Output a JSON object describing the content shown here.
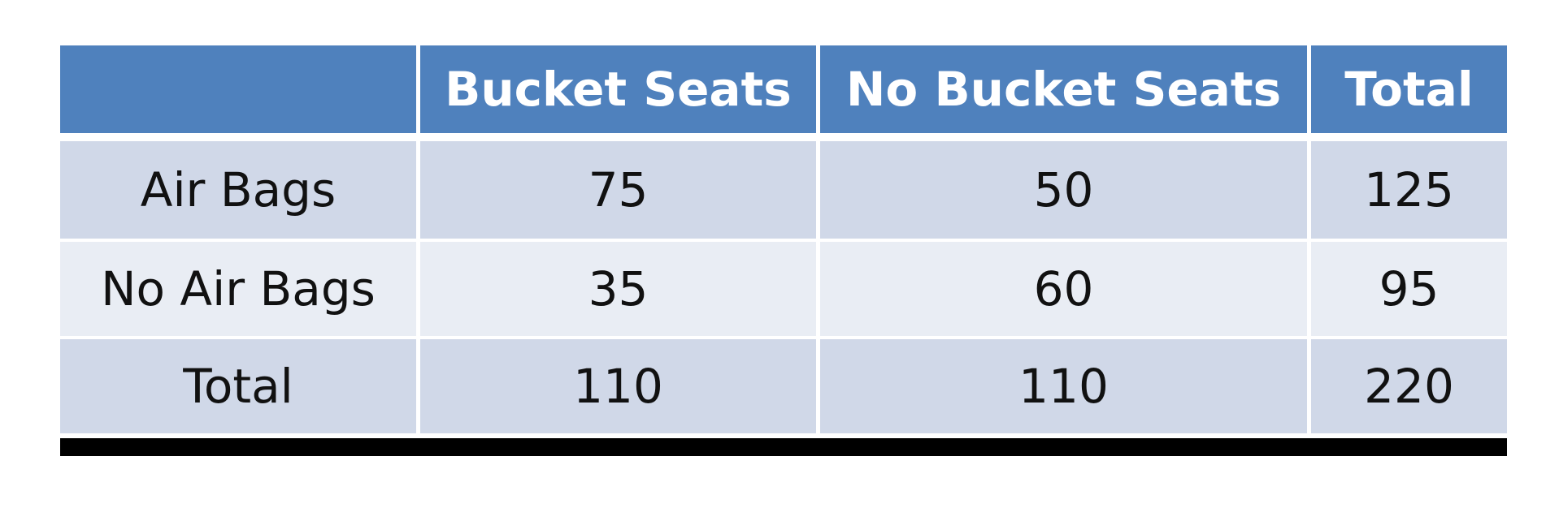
{
  "chart_data": {
    "type": "table",
    "columns": [
      "",
      "Bucket Seats",
      "No Bucket Seats",
      "Total"
    ],
    "rows": [
      {
        "label": "Air Bags",
        "values": [
          "75",
          "50",
          "125"
        ]
      },
      {
        "label": "No Air Bags",
        "values": [
          "35",
          "60",
          "95"
        ]
      },
      {
        "label": "Total",
        "values": [
          "110",
          "110",
          "220"
        ]
      }
    ]
  },
  "colors": {
    "header_bg": "#4f81bd",
    "band_dark": "#d0d8e8",
    "band_light": "#e9edf4",
    "rule": "#000000"
  }
}
